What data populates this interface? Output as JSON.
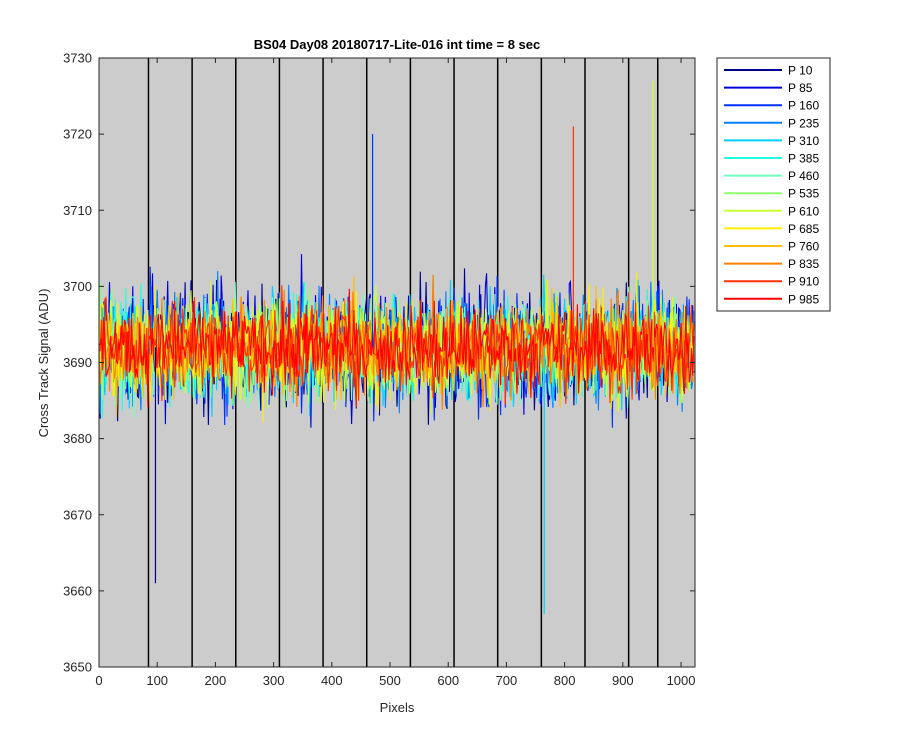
{
  "chart_data": {
    "type": "line",
    "title": "BS04 Day08 20180717-Lite-016 int time = 8 sec",
    "xlabel": "Pixels",
    "ylabel": "Cross Track Signal (ADU)",
    "xlim": [
      0,
      1024
    ],
    "ylim": [
      3650,
      3730
    ],
    "x_ticks": [
      0,
      100,
      200,
      300,
      400,
      500,
      600,
      700,
      800,
      900,
      1000
    ],
    "y_ticks": [
      3650,
      3660,
      3670,
      3680,
      3690,
      3700,
      3710,
      3720,
      3730
    ],
    "background_color": "#cccccc",
    "vertical_lines_x": [
      85,
      160,
      235,
      310,
      385,
      460,
      535,
      610,
      685,
      760,
      835,
      910,
      960
    ],
    "grid": false,
    "legend_position": "outside-right",
    "series_mean": 3692,
    "series_typical_range": [
      3675,
      3712
    ],
    "series": [
      {
        "name": "P 10",
        "color": "#00008f"
      },
      {
        "name": "P 85",
        "color": "#0000df"
      },
      {
        "name": "P 160",
        "color": "#0030ff"
      },
      {
        "name": "P 235",
        "color": "#0080ff"
      },
      {
        "name": "P 310",
        "color": "#00cfff"
      },
      {
        "name": "P 385",
        "color": "#20ffdf"
      },
      {
        "name": "P 460",
        "color": "#70ffbf"
      },
      {
        "name": "P 535",
        "color": "#90ff70"
      },
      {
        "name": "P 610",
        "color": "#cfff30"
      },
      {
        "name": "P 685",
        "color": "#ffef00"
      },
      {
        "name": "P 760",
        "color": "#ffbf00"
      },
      {
        "name": "P 835",
        "color": "#ff7f00"
      },
      {
        "name": "P 910",
        "color": "#ff3000"
      },
      {
        "name": "P 985",
        "color": "#ff0000"
      }
    ],
    "notable_extremes": [
      {
        "x": 97,
        "y": 3661
      },
      {
        "x": 765,
        "y": 3657
      },
      {
        "x": 952,
        "y": 3727
      },
      {
        "x": 815,
        "y": 3721
      },
      {
        "x": 470,
        "y": 3720
      }
    ]
  }
}
